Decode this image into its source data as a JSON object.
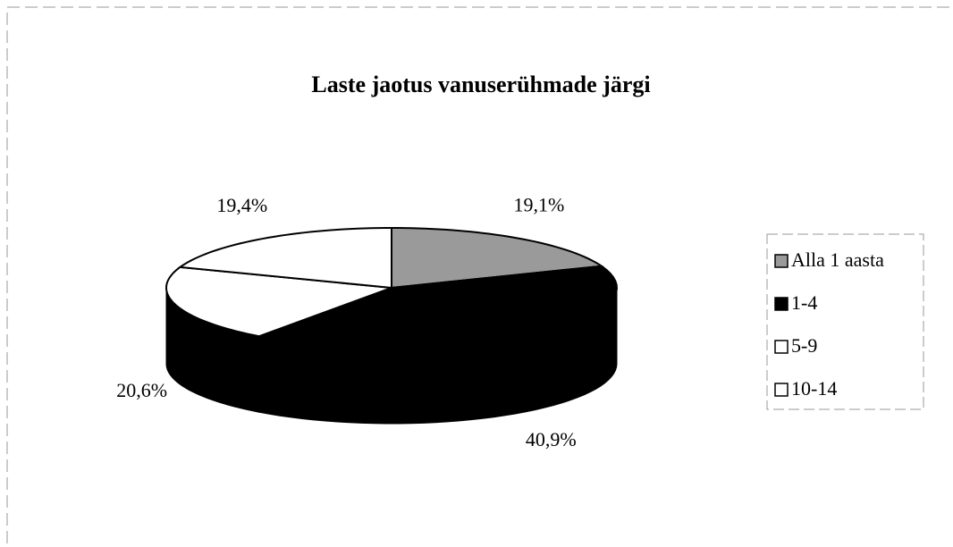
{
  "chart_data": {
    "type": "pie3d",
    "title": "Laste jaotus vanuserühmade järgi",
    "categories": [
      "Alla 1 aasta",
      "1-4",
      "5-9",
      "10-14"
    ],
    "values": [
      19.1,
      40.9,
      20.6,
      19.4
    ],
    "value_labels": [
      "19,1%",
      "40,9%",
      "20,6%",
      "19,4%"
    ],
    "colors": [
      "#9a9a9a",
      "#000000",
      "#ffffff",
      "#ffffff"
    ],
    "legend": "right"
  }
}
